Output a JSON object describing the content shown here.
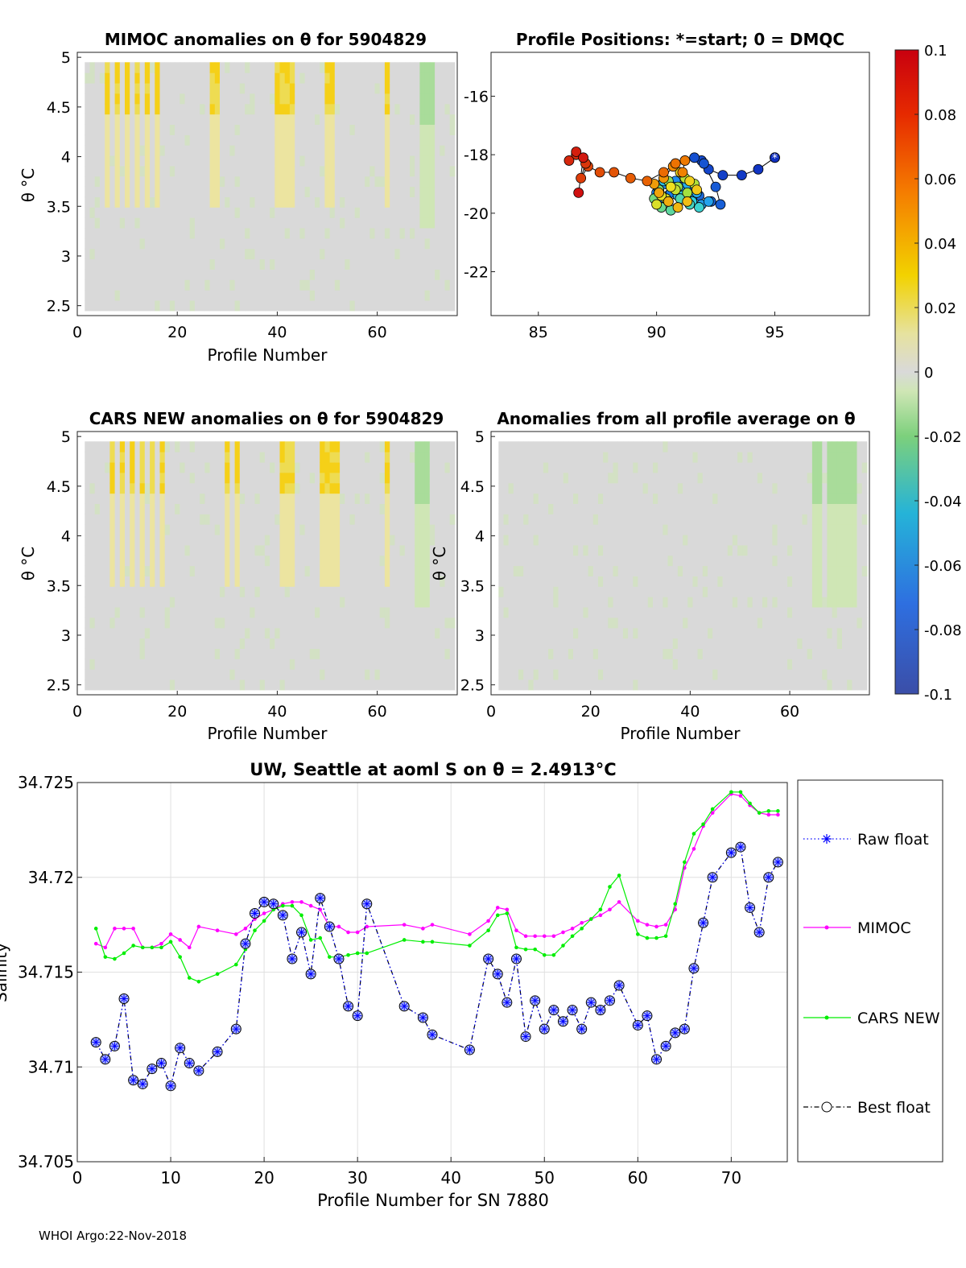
{
  "footer": "WHOI Argo:22-Nov-2018",
  "colorbar": {
    "ticks": [
      0.1,
      0.08,
      0.06,
      0.04,
      0.02,
      0,
      -0.02,
      -0.04,
      -0.06,
      -0.08,
      -0.1
    ],
    "tick_labels": [
      "0.1",
      "0.08",
      "0.06",
      "0.04",
      "0.02",
      "0",
      "-0.02",
      "-0.04",
      "-0.06",
      "-0.08",
      "-0.1"
    ],
    "range": [
      -0.1,
      0.1
    ]
  },
  "chart_data": [
    {
      "id": "mimoc_anom",
      "type": "heatmap",
      "title": "MIMOC anomalies on θ  for 5904829",
      "xlabel": "Profile Number",
      "ylabel": "θ °C",
      "xlim": [
        0,
        76
      ],
      "ylim": [
        2.4,
        5.05
      ],
      "xticks": [
        0,
        20,
        40,
        60
      ],
      "yticks": [
        2.5,
        3,
        3.5,
        4,
        4.5,
        5
      ],
      "ytick_labels": [
        "2.5",
        "3",
        "3.5",
        "4",
        "4.5",
        "5"
      ],
      "warm_columns": [
        6,
        8,
        10,
        12,
        14,
        16,
        27,
        28,
        40,
        41,
        42,
        43,
        50,
        51,
        62
      ],
      "cool_columns": [
        69,
        70,
        71
      ]
    },
    {
      "id": "positions",
      "type": "scatter",
      "title": "Profile Positions: *=start; 0 = DMQC",
      "xlim": [
        83,
        99
      ],
      "ylim": [
        -23.5,
        -14.5
      ],
      "xticks": [
        85,
        90,
        95
      ],
      "yticks": [
        -16,
        -18,
        -20,
        -22
      ],
      "ytick_labels": [
        "-16",
        "-18",
        "-20",
        "-22"
      ],
      "lon": [
        95.0,
        94.3,
        93.6,
        92.8,
        92.2,
        91.9,
        91.6,
        92.0,
        92.5,
        92.7,
        92.3,
        91.8,
        91.4,
        91.0,
        90.6,
        90.2,
        90.0,
        90.4,
        90.8,
        91.2,
        91.5,
        91.9,
        92.2,
        91.7,
        91.3,
        90.9,
        90.5,
        90.1,
        90.3,
        90.7,
        91.1,
        91.5,
        91.8,
        91.4,
        91.0,
        90.6,
        90.2,
        89.9,
        90.1,
        90.5,
        90.9,
        91.3,
        91.6,
        91.2,
        90.8,
        90.4,
        90.0,
        90.2,
        90.6,
        91.0,
        91.4,
        91.7,
        91.3,
        90.9,
        90.5,
        90.1,
        89.9,
        90.3,
        90.7,
        91.1,
        91.2,
        90.8,
        90.3,
        89.6,
        88.9,
        88.2,
        87.6,
        87.1,
        86.8,
        87.0,
        86.6,
        86.3,
        86.6,
        86.9,
        86.7
      ],
      "lat": [
        -18.1,
        -18.5,
        -18.7,
        -18.7,
        -18.5,
        -18.2,
        -18.1,
        -18.3,
        -19.1,
        -19.7,
        -19.6,
        -19.4,
        -19.2,
        -19.1,
        -19.3,
        -19.5,
        -19.3,
        -19.0,
        -18.9,
        -19.2,
        -19.5,
        -19.7,
        -19.6,
        -19.3,
        -19.0,
        -19.4,
        -19.6,
        -19.2,
        -18.9,
        -19.1,
        -19.4,
        -19.6,
        -19.8,
        -19.7,
        -19.5,
        -19.9,
        -19.8,
        -19.5,
        -19.2,
        -18.9,
        -19.1,
        -19.3,
        -19.0,
        -18.8,
        -19.2,
        -19.5,
        -19.7,
        -19.4,
        -19.1,
        -18.6,
        -18.9,
        -19.2,
        -19.6,
        -19.8,
        -19.6,
        -19.3,
        -19.0,
        -18.8,
        -18.4,
        -18.6,
        -18.2,
        -18.3,
        -18.6,
        -18.9,
        -18.8,
        -18.6,
        -18.6,
        -18.4,
        -18.8,
        -18.3,
        -18.0,
        -18.2,
        -17.9,
        -18.1,
        -19.3
      ]
    },
    {
      "id": "cars_anom",
      "type": "heatmap",
      "title": "CARS NEW anomalies on θ for 5904829",
      "xlabel": "Profile Number",
      "ylabel": "θ °C",
      "xlim": [
        0,
        76
      ],
      "ylim": [
        2.4,
        5.05
      ],
      "xticks": [
        0,
        20,
        40,
        60
      ],
      "yticks": [
        2.5,
        3,
        3.5,
        4,
        4.5,
        5
      ],
      "ytick_labels": [
        "2.5",
        "3",
        "3.5",
        "4",
        "4.5",
        "5"
      ],
      "warm_columns": [
        7,
        9,
        11,
        13,
        15,
        17,
        30,
        32,
        41,
        42,
        43,
        49,
        50,
        51,
        52,
        62
      ],
      "cool_columns": [
        68,
        69,
        70
      ]
    },
    {
      "id": "avg_anom",
      "type": "heatmap",
      "title": "Anomalies from all profile average on θ",
      "xlabel": "Profile Number",
      "ylabel": "θ °C",
      "xlim": [
        0,
        76
      ],
      "ylim": [
        2.4,
        5.05
      ],
      "xticks": [
        0,
        20,
        40,
        60
      ],
      "yticks": [
        2.5,
        3,
        3.5,
        4,
        4.5,
        5
      ],
      "ytick_labels": [
        "2.5",
        "3",
        "3.5",
        "4",
        "4.5",
        "5"
      ],
      "warm_columns": [],
      "cool_columns": [
        65,
        66,
        68,
        69,
        70,
        71,
        72,
        73
      ]
    },
    {
      "id": "salinity",
      "type": "line",
      "title": "UW, Seattle at aoml S on θ = 2.4913°C",
      "title_main": "UW, Seattle at aoml S on θ = 2.4913°C",
      "xlabel": "Profile Number for SN 7880",
      "ylabel": "Salinity",
      "xlim": [
        0,
        76
      ],
      "ylim": [
        34.705,
        34.725
      ],
      "xticks": [
        0,
        10,
        20,
        30,
        40,
        50,
        60,
        70
      ],
      "xtick_labels": [
        "0",
        "10",
        "20",
        "30",
        "40",
        "50",
        "60",
        "70"
      ],
      "yticks": [
        34.705,
        34.71,
        34.715,
        34.72,
        34.725
      ],
      "ytick_labels": [
        "34.705",
        "34.71",
        "34.715",
        "34.72",
        "34.725"
      ],
      "grid": true,
      "legend": [
        "Raw float",
        "MIMOC",
        "CARS NEW",
        "Best float"
      ],
      "legend_placement": "outside-right",
      "colors": {
        "raw": "#0000ff",
        "mimoc": "#ff00ff",
        "cars": "#00ee00",
        "best": "#000000",
        "marker_fill": "#b0bcff"
      },
      "x": [
        2,
        3,
        4,
        5,
        6,
        7,
        8,
        9,
        10,
        11,
        12,
        13,
        15,
        17,
        18,
        19,
        20,
        21,
        22,
        23,
        24,
        25,
        26,
        27,
        28,
        29,
        30,
        31,
        35,
        37,
        38,
        42,
        44,
        45,
        46,
        47,
        48,
        49,
        50,
        51,
        52,
        53,
        54,
        55,
        56,
        57,
        58,
        60,
        61,
        62,
        63,
        64,
        65,
        66,
        67,
        68,
        70,
        71,
        72,
        73,
        74,
        75
      ],
      "series": [
        {
          "name": "Raw float",
          "values": [
            34.7113,
            34.7104,
            34.7111,
            34.7136,
            34.7093,
            34.7091,
            34.7099,
            34.7102,
            34.709,
            34.711,
            34.7102,
            34.7098,
            34.7108,
            34.712,
            34.7165,
            34.7181,
            34.7187,
            34.7186,
            34.718,
            34.7157,
            34.7171,
            34.7149,
            34.7189,
            34.7174,
            34.7157,
            34.7132,
            34.7127,
            34.7186,
            34.7132,
            34.7126,
            34.7117,
            34.7109,
            34.7157,
            34.7149,
            34.7134,
            34.7157,
            34.7116,
            34.7135,
            34.712,
            34.713,
            34.7124,
            34.713,
            34.712,
            34.7134,
            34.713,
            34.7135,
            34.7143,
            34.7122,
            34.7127,
            34.7104,
            34.7111,
            34.7118,
            34.712,
            34.7152,
            34.7176,
            34.72,
            34.7213,
            34.7216,
            34.7184,
            34.7171,
            34.72,
            34.7208
          ]
        },
        {
          "name": "MIMOC",
          "values": [
            34.7165,
            34.7163,
            34.7173,
            34.7173,
            34.7173,
            34.7163,
            34.7163,
            34.7165,
            34.717,
            34.7167,
            34.7163,
            34.7174,
            34.7172,
            34.717,
            34.7173,
            34.7178,
            34.7181,
            34.7183,
            34.7186,
            34.7187,
            34.7187,
            34.7185,
            34.7183,
            34.7174,
            34.7174,
            34.7171,
            34.7171,
            34.7174,
            34.7175,
            34.7173,
            34.7175,
            34.717,
            34.7177,
            34.7184,
            34.7183,
            34.7172,
            34.7169,
            34.7169,
            34.7169,
            34.7169,
            34.7171,
            34.7173,
            34.7176,
            34.7178,
            34.718,
            34.7183,
            34.7187,
            34.7177,
            34.7175,
            34.7174,
            34.7175,
            34.7183,
            34.7205,
            34.7215,
            34.7227,
            34.7234,
            34.7244,
            34.7243,
            34.7238,
            34.7234,
            34.7233,
            34.7233
          ]
        },
        {
          "name": "CARS NEW",
          "values": [
            34.7173,
            34.7158,
            34.7157,
            34.716,
            34.7164,
            34.7163,
            34.7163,
            34.7163,
            34.7166,
            34.7158,
            34.7147,
            34.7145,
            34.7149,
            34.7154,
            34.7162,
            34.7172,
            34.7177,
            34.7183,
            34.7185,
            34.7185,
            34.718,
            34.7167,
            34.7168,
            34.7158,
            34.7158,
            34.7159,
            34.716,
            34.716,
            34.7167,
            34.7166,
            34.7166,
            34.7164,
            34.7172,
            34.718,
            34.7181,
            34.7163,
            34.7162,
            34.7162,
            34.7159,
            34.7159,
            34.7164,
            34.7169,
            34.7173,
            34.7178,
            34.7183,
            34.7195,
            34.7201,
            34.717,
            34.7168,
            34.7168,
            34.7169,
            34.7186,
            34.7208,
            34.7223,
            34.7228,
            34.7236,
            34.7245,
            34.7245,
            34.7239,
            34.7234,
            34.7235,
            34.7235
          ]
        },
        {
          "name": "Best float",
          "values": [
            34.7113,
            34.7104,
            34.7111,
            34.7136,
            34.7093,
            34.7091,
            34.7099,
            34.7102,
            34.709,
            34.711,
            34.7102,
            34.7098,
            34.7108,
            34.712,
            34.7165,
            34.7181,
            34.7187,
            34.7186,
            34.718,
            34.7157,
            34.7171,
            34.7149,
            34.7189,
            34.7174,
            34.7157,
            34.7132,
            34.7127,
            34.7186,
            34.7132,
            34.7126,
            34.7117,
            34.7109,
            34.7157,
            34.7149,
            34.7134,
            34.7157,
            34.7116,
            34.7135,
            34.712,
            34.713,
            34.7124,
            34.713,
            34.712,
            34.7134,
            34.713,
            34.7135,
            34.7143,
            34.7122,
            34.7127,
            34.7104,
            34.7111,
            34.7118,
            34.712,
            34.7152,
            34.7176,
            34.72,
            34.7213,
            34.7216,
            34.7184,
            34.7171,
            34.72,
            34.7208
          ]
        }
      ]
    }
  ]
}
